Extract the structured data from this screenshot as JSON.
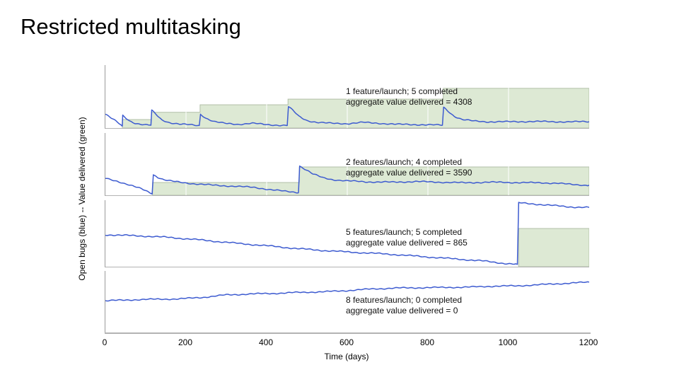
{
  "slide": {
    "title": "Restricted multitasking"
  },
  "figure": {
    "ylabel": "Open bugs (blue) -- Value delivered (green)",
    "xlabel": "Time (days)",
    "x_ticks": [
      0,
      200,
      400,
      600,
      800,
      1000,
      1200
    ],
    "x_range": [
      0,
      1200
    ],
    "colors": {
      "bugs_line": "#3d5bd0",
      "value_fill": "#dde9d4",
      "value_edge": "#b2c0a8",
      "axis": "#9b9b9b",
      "grid": "#ffffff"
    }
  },
  "chart_data": [
    {
      "type": "line",
      "annotation_line1": "1 feature/launch; 5 completed",
      "annotation_line2": "aggregate value delivered = 4308",
      "features_per_launch": 1,
      "launches_completed": 5,
      "aggregate_value_delivered": 4308,
      "launch_days": [
        42,
        114,
        235,
        453,
        838
      ],
      "y_units": "relative 0-1 of panel height",
      "value_steps": [
        [
          42,
          0.135
        ],
        [
          114,
          0.25
        ],
        [
          235,
          0.37
        ],
        [
          453,
          0.46
        ],
        [
          838,
          0.63
        ]
      ],
      "bugs_keypoints": [
        [
          0,
          0.22
        ],
        [
          15,
          0.155
        ],
        [
          30,
          0.09
        ],
        [
          42,
          0.03
        ],
        [
          43,
          0.2
        ],
        [
          50,
          0.165
        ],
        [
          60,
          0.115
        ],
        [
          75,
          0.075
        ],
        [
          95,
          0.05
        ],
        [
          113,
          0.045
        ],
        [
          115,
          0.28
        ],
        [
          125,
          0.22
        ],
        [
          140,
          0.13
        ],
        [
          160,
          0.085
        ],
        [
          185,
          0.06
        ],
        [
          215,
          0.05
        ],
        [
          233,
          0.04
        ],
        [
          236,
          0.22
        ],
        [
          250,
          0.155
        ],
        [
          270,
          0.1
        ],
        [
          295,
          0.075
        ],
        [
          330,
          0.06
        ],
        [
          365,
          0.075
        ],
        [
          400,
          0.055
        ],
        [
          430,
          0.045
        ],
        [
          451,
          0.04
        ],
        [
          454,
          0.34
        ],
        [
          465,
          0.28
        ],
        [
          480,
          0.185
        ],
        [
          500,
          0.12
        ],
        [
          525,
          0.09
        ],
        [
          560,
          0.075
        ],
        [
          600,
          0.07
        ],
        [
          640,
          0.09
        ],
        [
          680,
          0.075
        ],
        [
          720,
          0.06
        ],
        [
          770,
          0.055
        ],
        [
          810,
          0.05
        ],
        [
          836,
          0.045
        ],
        [
          839,
          0.33
        ],
        [
          850,
          0.27
        ],
        [
          865,
          0.19
        ],
        [
          885,
          0.135
        ],
        [
          915,
          0.11
        ],
        [
          950,
          0.1
        ],
        [
          1000,
          0.1
        ],
        [
          1060,
          0.105
        ],
        [
          1120,
          0.1
        ],
        [
          1200,
          0.1
        ]
      ]
    },
    {
      "type": "line",
      "annotation_line1": "2 features/launch; 4 completed",
      "annotation_line2": "aggregate value delivered = 3590",
      "features_per_launch": 2,
      "launches_completed": 4,
      "aggregate_value_delivered": 3590,
      "launch_days": [
        117,
        481
      ],
      "y_units": "relative 0-1 of panel height",
      "value_steps": [
        [
          117,
          0.205
        ],
        [
          481,
          0.455
        ]
      ],
      "bugs_keypoints": [
        [
          0,
          0.27
        ],
        [
          30,
          0.225
        ],
        [
          60,
          0.165
        ],
        [
          90,
          0.1
        ],
        [
          115,
          0.03
        ],
        [
          116,
          0.02
        ],
        [
          119,
          0.33
        ],
        [
          130,
          0.29
        ],
        [
          145,
          0.25
        ],
        [
          165,
          0.225
        ],
        [
          195,
          0.2
        ],
        [
          230,
          0.18
        ],
        [
          270,
          0.16
        ],
        [
          320,
          0.145
        ],
        [
          370,
          0.125
        ],
        [
          410,
          0.09
        ],
        [
          450,
          0.06
        ],
        [
          479,
          0.045
        ],
        [
          482,
          0.47
        ],
        [
          495,
          0.42
        ],
        [
          515,
          0.34
        ],
        [
          540,
          0.28
        ],
        [
          565,
          0.25
        ],
        [
          600,
          0.23
        ],
        [
          650,
          0.215
        ],
        [
          710,
          0.21
        ],
        [
          770,
          0.22
        ],
        [
          830,
          0.21
        ],
        [
          890,
          0.2
        ],
        [
          950,
          0.21
        ],
        [
          1010,
          0.205
        ],
        [
          1070,
          0.2
        ],
        [
          1120,
          0.195
        ],
        [
          1160,
          0.17
        ],
        [
          1200,
          0.16
        ]
      ]
    },
    {
      "type": "line",
      "annotation_line1": "5 features/launch; 5 completed",
      "annotation_line2": "aggregate value delivered = 865",
      "features_per_launch": 5,
      "launches_completed": 5,
      "aggregate_value_delivered": 865,
      "launch_days": [
        1025
      ],
      "y_units": "relative 0-1 of panel height",
      "value_steps": [
        [
          1025,
          0.575
        ]
      ],
      "bugs_keypoints": [
        [
          0,
          0.48
        ],
        [
          80,
          0.465
        ],
        [
          160,
          0.44
        ],
        [
          240,
          0.4
        ],
        [
          320,
          0.355
        ],
        [
          400,
          0.315
        ],
        [
          480,
          0.27
        ],
        [
          550,
          0.24
        ],
        [
          620,
          0.215
        ],
        [
          700,
          0.19
        ],
        [
          780,
          0.155
        ],
        [
          860,
          0.12
        ],
        [
          930,
          0.09
        ],
        [
          990,
          0.05
        ],
        [
          1022,
          0.035
        ],
        [
          1025,
          0.96
        ],
        [
          1060,
          0.945
        ],
        [
          1100,
          0.925
        ],
        [
          1150,
          0.9
        ],
        [
          1200,
          0.89
        ]
      ]
    },
    {
      "type": "line",
      "annotation_line1": "8 features/launch; 0 completed",
      "annotation_line2": "aggregate value delivered = 0",
      "features_per_launch": 8,
      "launches_completed": 0,
      "aggregate_value_delivered": 0,
      "launch_days": [],
      "y_units": "relative 0-1 of panel height",
      "value_steps": [],
      "bugs_keypoints": [
        [
          0,
          0.52
        ],
        [
          60,
          0.535
        ],
        [
          120,
          0.545
        ],
        [
          180,
          0.55
        ],
        [
          240,
          0.575
        ],
        [
          300,
          0.615
        ],
        [
          360,
          0.63
        ],
        [
          420,
          0.64
        ],
        [
          480,
          0.655
        ],
        [
          540,
          0.665
        ],
        [
          600,
          0.685
        ],
        [
          660,
          0.71
        ],
        [
          720,
          0.725
        ],
        [
          780,
          0.73
        ],
        [
          840,
          0.735
        ],
        [
          900,
          0.74
        ],
        [
          960,
          0.755
        ],
        [
          1020,
          0.76
        ],
        [
          1080,
          0.78
        ],
        [
          1140,
          0.8
        ],
        [
          1200,
          0.82
        ]
      ]
    }
  ]
}
